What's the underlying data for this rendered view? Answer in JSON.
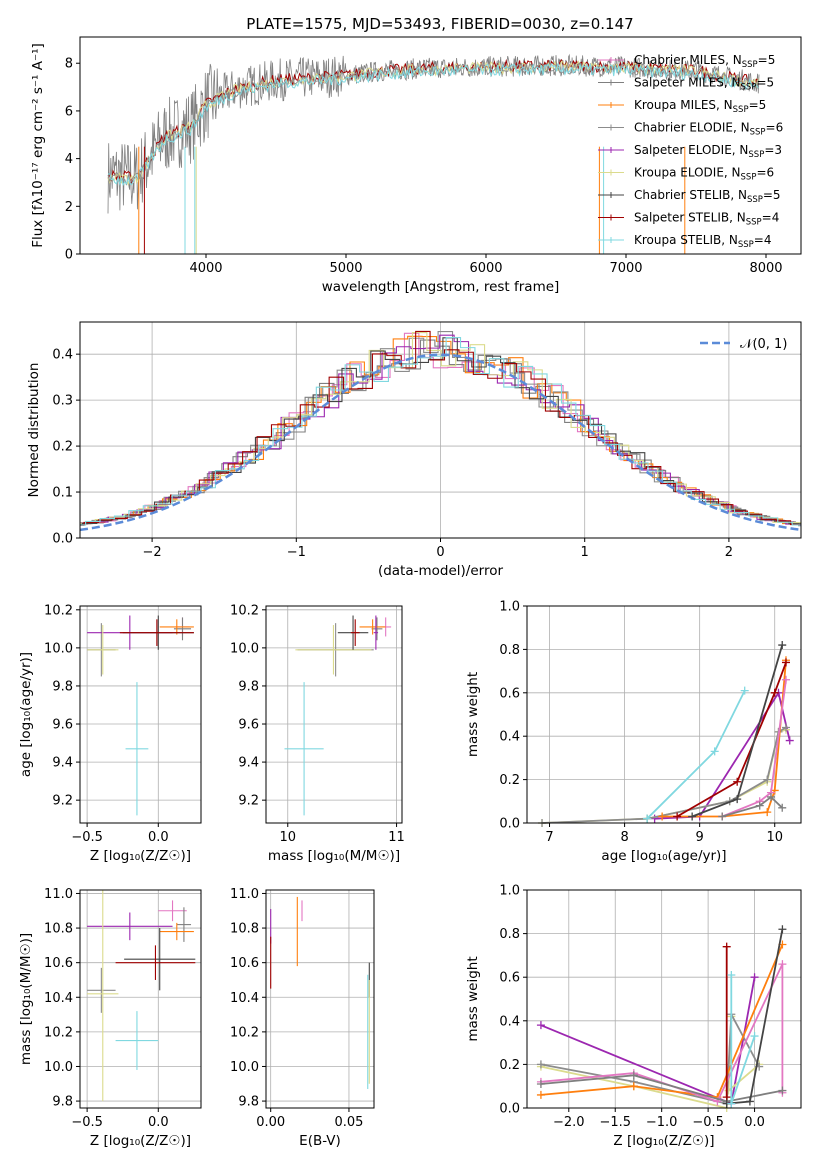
{
  "figure_title": "PLATE=1575, MJD=53493, FIBERID=0030, z=0.147",
  "colors": {
    "Chabrier MILES": "#e377c2",
    "Salpeter MILES": "#7f7f7f",
    "Kroupa MILES": "#ff7f0e",
    "Chabrier ELODIE": "#8c8c8c",
    "Salpeter ELODIE": "#9c27b0",
    "Kroupa ELODIE": "#dbdb8d",
    "Chabrier STELIB": "#444444",
    "Salpeter STELIB": "#a00000",
    "Kroupa STELIB": "#80d8e0",
    "normal": "#5b8bd8",
    "spectrum_gray": "#808080"
  },
  "chart_data": [
    {
      "id": "spectrum",
      "type": "line",
      "title": "PLATE=1575, MJD=53493, FIBERID=0030, z=0.147",
      "xlabel": "wavelength [Angstrom, rest frame]",
      "ylabel": "Flux [fλ10⁻¹⁷ erg cm⁻² s⁻¹ A⁻¹]",
      "xlim": [
        3100,
        8250
      ],
      "ylim": [
        0,
        9.1
      ],
      "xticks": [
        "4000",
        "5000",
        "6000",
        "7000",
        "8000"
      ],
      "yticks": [
        "0",
        "2",
        "4",
        "6",
        "8"
      ],
      "grid": false,
      "legend_position": "top-right",
      "legend": [
        {
          "label": "Chabrier MILES, N",
          "sub": "SSP",
          "suffix": "=5"
        },
        {
          "label": "Salpeter MILES, N",
          "sub": "SSP",
          "suffix": "=5"
        },
        {
          "label": "Kroupa MILES, N",
          "sub": "SSP",
          "suffix": "=5"
        },
        {
          "label": "Chabrier ELODIE, N",
          "sub": "SSP",
          "suffix": "=6"
        },
        {
          "label": "Salpeter ELODIE, N",
          "sub": "SSP",
          "suffix": "=3"
        },
        {
          "label": "Kroupa ELODIE, N",
          "sub": "SSP",
          "suffix": "=6"
        },
        {
          "label": "Chabrier STELIB, N",
          "sub": "SSP",
          "suffix": "=5"
        },
        {
          "label": "Salpeter STELIB, N",
          "sub": "SSP",
          "suffix": "=4"
        },
        {
          "label": "Kroupa STELIB, N",
          "sub": "SSP",
          "suffix": "=4"
        }
      ],
      "continuum": {
        "x": [
          3300,
          3500,
          3700,
          3900,
          4000,
          4200,
          4500,
          4800,
          5000,
          5300,
          5600,
          6000,
          6500,
          7000,
          7500,
          8000
        ],
        "y": [
          3.3,
          3.2,
          4.9,
          5.4,
          6.3,
          6.9,
          7.3,
          7.4,
          7.5,
          7.7,
          7.8,
          7.85,
          7.9,
          7.85,
          7.7,
          7.1
        ]
      }
    },
    {
      "id": "residuals",
      "type": "histogram",
      "xlabel": "(data-model)/error",
      "ylabel": "Normed distribution",
      "xlim": [
        -2.5,
        2.5
      ],
      "ylim": [
        0,
        0.47
      ],
      "xticks": [
        "−2",
        "−1",
        "0",
        "1",
        "2"
      ],
      "yticks": [
        "0.0",
        "0.1",
        "0.2",
        "0.3",
        "0.4"
      ],
      "grid": true,
      "legend_position": "top-right",
      "legend": [
        "𝒩(0, 1)"
      ],
      "bin_width": 0.1
    },
    {
      "id": "age_vs_z",
      "type": "errorbar",
      "xlabel": "Z [log₁₀(Z/Z☉)]",
      "ylabel": "age  [log₁₀(age/yr)]",
      "xlim": [
        -0.55,
        0.3
      ],
      "ylim": [
        9.08,
        10.22
      ],
      "xticks": [
        "−0.5",
        "0.0"
      ],
      "yticks": [
        "9.2",
        "9.4",
        "9.6",
        "9.8",
        "10.0",
        "10.2"
      ],
      "grid": true,
      "points": [
        {
          "model": "Chabrier MILES",
          "x": 0.17,
          "xerr": 0.05,
          "y": 10.11,
          "yerr": 0.05
        },
        {
          "model": "Salpeter MILES",
          "x": 0.17,
          "xerr": 0.06,
          "y": 10.1,
          "yerr": 0.06
        },
        {
          "model": "Kroupa MILES",
          "x": 0.13,
          "xerr": 0.12,
          "y": 10.11,
          "yerr": 0.04
        },
        {
          "model": "Chabrier ELODIE",
          "x": -0.4,
          "xerr": 0.1,
          "y": 9.99,
          "yerr": 0.14
        },
        {
          "model": "Salpeter ELODIE",
          "x": -0.2,
          "xerr": 0.3,
          "y": 10.08,
          "yerr": 0.09
        },
        {
          "model": "Kroupa ELODIE",
          "x": -0.39,
          "xerr": 0.11,
          "y": 9.99,
          "yerr": 0.13
        },
        {
          "model": "Chabrier STELIB",
          "x": 0.0,
          "xerr": 0.25,
          "y": 10.08,
          "yerr": 0.09
        },
        {
          "model": "Salpeter STELIB",
          "x": -0.01,
          "xerr": 0.26,
          "y": 10.08,
          "yerr": 0.07
        },
        {
          "model": "Kroupa STELIB",
          "x": -0.15,
          "xerr": 0.08,
          "y": 9.47,
          "yerr": 0.35
        }
      ]
    },
    {
      "id": "age_vs_mass",
      "type": "errorbar",
      "xlabel": "mass [log₁₀(M/M☉)]",
      "xlim": [
        9.8,
        11.05
      ],
      "ylim": [
        9.08,
        10.22
      ],
      "xticks": [
        "10",
        "11"
      ],
      "yticks": [
        "9.2",
        "9.4",
        "9.6",
        "9.8",
        "10.0",
        "10.2"
      ],
      "grid": true,
      "points": [
        {
          "model": "Chabrier MILES",
          "x": 10.9,
          "xerr": 0.05,
          "y": 10.11,
          "yerr": 0.05
        },
        {
          "model": "Salpeter MILES",
          "x": 10.82,
          "xerr": 0.05,
          "y": 10.1,
          "yerr": 0.06
        },
        {
          "model": "Kroupa MILES",
          "x": 10.78,
          "xerr": 0.12,
          "y": 10.11,
          "yerr": 0.04
        },
        {
          "model": "Chabrier ELODIE",
          "x": 10.44,
          "xerr": 0.35,
          "y": 9.99,
          "yerr": 0.14
        },
        {
          "model": "Salpeter ELODIE",
          "x": 10.81,
          "xerr": 0.02,
          "y": 10.08,
          "yerr": 0.09
        },
        {
          "model": "Kroupa ELODIE",
          "x": 10.42,
          "xerr": 0.35,
          "y": 9.99,
          "yerr": 0.13
        },
        {
          "model": "Chabrier STELIB",
          "x": 10.6,
          "xerr": 0.14,
          "y": 10.08,
          "yerr": 0.09
        },
        {
          "model": "Salpeter STELIB",
          "x": 10.62,
          "xerr": 0.04,
          "y": 10.08,
          "yerr": 0.07
        },
        {
          "model": "Kroupa STELIB",
          "x": 10.15,
          "xerr": 0.18,
          "y": 9.47,
          "yerr": 0.35
        }
      ]
    },
    {
      "id": "weight_vs_age",
      "type": "line",
      "xlabel": "age  [log₁₀(age/yr)]",
      "ylabel": "mass weight",
      "xlim": [
        6.7,
        10.35
      ],
      "ylim": [
        0,
        1.0
      ],
      "xticks": [
        "7",
        "8",
        "9",
        "10"
      ],
      "yticks": [
        "0.0",
        "0.2",
        "0.4",
        "0.6",
        "0.8",
        "1.0"
      ],
      "grid": true,
      "series": [
        {
          "model": "Salpeter ELODIE",
          "x": [
            8.4,
            9.0,
            10.05,
            10.2
          ],
          "y": [
            0.02,
            0.03,
            0.6,
            0.38
          ]
        },
        {
          "model": "Kroupa ELODIE",
          "x": [
            6.9,
            8.3,
            9.4,
            9.9,
            10.05,
            10.15
          ],
          "y": [
            0.0,
            0.02,
            0.1,
            0.19,
            0.42,
            0.43
          ]
        },
        {
          "model": "Chabrier ELODIE",
          "x": [
            6.9,
            8.3,
            9.4,
            9.9,
            10.05,
            10.15
          ],
          "y": [
            0.0,
            0.02,
            0.1,
            0.2,
            0.42,
            0.44
          ]
        },
        {
          "model": "Kroupa MILES",
          "x": [
            8.5,
            9.3,
            9.9,
            10.0,
            10.15
          ],
          "y": [
            0.03,
            0.03,
            0.05,
            0.15,
            0.75
          ]
        },
        {
          "model": "Chabrier MILES",
          "x": [
            9.3,
            9.8,
            9.95,
            10.15
          ],
          "y": [
            0.03,
            0.1,
            0.14,
            0.66
          ]
        },
        {
          "model": "Salpeter MILES",
          "x": [
            9.3,
            9.8,
            9.95,
            10.1
          ],
          "y": [
            0.03,
            0.08,
            0.12,
            0.07
          ]
        },
        {
          "model": "Salpeter STELIB",
          "x": [
            8.7,
            9.5,
            10.0,
            10.15
          ],
          "y": [
            0.03,
            0.19,
            0.6,
            0.74
          ]
        },
        {
          "model": "Chabrier STELIB",
          "x": [
            8.9,
            9.5,
            10.1
          ],
          "y": [
            0.03,
            0.11,
            0.82
          ]
        },
        {
          "model": "Kroupa STELIB",
          "x": [
            8.3,
            9.2,
            9.6
          ],
          "y": [
            0.02,
            0.33,
            0.61
          ]
        }
      ]
    },
    {
      "id": "mass_vs_z",
      "type": "errorbar",
      "xlabel": "Z [log₁₀(Z/Z☉)]",
      "ylabel": "mass [log₁₀(M/M☉)]",
      "xlim": [
        -0.55,
        0.3
      ],
      "ylim": [
        9.76,
        11.02
      ],
      "xticks": [
        "−0.5",
        "0.0"
      ],
      "yticks": [
        "9.8",
        "10.0",
        "10.2",
        "10.4",
        "10.6",
        "10.8",
        "11.0"
      ],
      "grid": true,
      "points": [
        {
          "model": "Chabrier MILES",
          "x": 0.1,
          "xerr": 0.1,
          "y": 10.9,
          "yerr": 0.06
        },
        {
          "model": "Salpeter MILES",
          "x": 0.18,
          "xerr": 0.05,
          "y": 10.82,
          "yerr": 0.1
        },
        {
          "model": "Kroupa MILES",
          "x": 0.13,
          "xerr": 0.12,
          "y": 10.78,
          "yerr": 0.05
        },
        {
          "model": "Chabrier ELODIE",
          "x": -0.4,
          "xerr": 0.1,
          "y": 10.44,
          "yerr": 0.13
        },
        {
          "model": "Salpeter ELODIE",
          "x": -0.2,
          "xerr": 0.3,
          "y": 10.81,
          "yerr": 0.08
        },
        {
          "model": "Kroupa ELODIE",
          "x": -0.39,
          "xerr": 0.11,
          "y": 10.42,
          "yerr": 0.62
        },
        {
          "model": "Chabrier STELIB",
          "x": 0.01,
          "xerr": 0.25,
          "y": 10.62,
          "yerr": 0.18
        },
        {
          "model": "Salpeter STELIB",
          "x": -0.02,
          "xerr": 0.28,
          "y": 10.6,
          "yerr": 0.1
        },
        {
          "model": "Kroupa STELIB",
          "x": -0.15,
          "xerr": 0.15,
          "y": 10.15,
          "yerr": 0.17
        }
      ]
    },
    {
      "id": "mass_vs_ebv",
      "type": "errorbar",
      "xlabel": "E(B-V)",
      "xlim": [
        -0.003,
        0.066
      ],
      "ylim": [
        9.76,
        11.02
      ],
      "xticks": [
        "0.00",
        "0.05"
      ],
      "yticks": [
        "9.8",
        "10.0",
        "10.2",
        "10.4",
        "10.6",
        "10.8",
        "11.0"
      ],
      "grid": true,
      "points": [
        {
          "model": "Chabrier MILES",
          "x": 0.02,
          "y": 10.9,
          "yerr": 0.06
        },
        {
          "model": "Kroupa MILES",
          "x": 0.017,
          "y": 10.78,
          "yerr": 0.2
        },
        {
          "model": "Salpeter ELODIE",
          "x": 0.0,
          "y": 10.81,
          "yerr": 0.1
        },
        {
          "model": "Salpeter STELIB",
          "x": 0.0,
          "y": 10.6,
          "yerr": 0.15
        },
        {
          "model": "Chabrier STELIB",
          "x": 0.063,
          "y": 10.5,
          "yerr": 0.1
        },
        {
          "model": "Kroupa ELODIE",
          "x": 0.063,
          "y": 10.2,
          "yerr": 0.3
        },
        {
          "model": "Kroupa STELIB",
          "x": 0.062,
          "y": 10.2,
          "yerr": 0.33
        }
      ]
    },
    {
      "id": "weight_vs_z",
      "type": "line",
      "xlabel": "Z [log₁₀(Z/Z☉)]",
      "ylabel": "mass weight",
      "xlim": [
        -2.45,
        0.5
      ],
      "ylim": [
        0,
        1.0
      ],
      "xticks": [
        "−2.0",
        "−1.5",
        "−1.0",
        "−0.5",
        "0.0"
      ],
      "yticks": [
        "0.0",
        "0.2",
        "0.4",
        "0.6",
        "0.8",
        "1.0"
      ],
      "grid": true,
      "series": [
        {
          "model": "Salpeter ELODIE",
          "x": [
            -2.3,
            -0.25,
            0.0
          ],
          "y": [
            0.38,
            0.02,
            0.6
          ]
        },
        {
          "model": "Kroupa ELODIE",
          "x": [
            -2.3,
            -1.3,
            -0.3,
            -0.25,
            -0.28,
            0.05
          ],
          "y": [
            0.19,
            0.1,
            0.0,
            0.42,
            0.08,
            0.2
          ]
        },
        {
          "model": "Chabrier ELODIE",
          "x": [
            -2.3,
            -1.3,
            -0.3,
            -0.25,
            0.05
          ],
          "y": [
            0.2,
            0.12,
            0.02,
            0.43,
            0.19
          ]
        },
        {
          "model": "Kroupa MILES",
          "x": [
            -2.3,
            -1.3,
            -0.4,
            0.3
          ],
          "y": [
            0.06,
            0.1,
            0.05,
            0.75
          ]
        },
        {
          "model": "Chabrier MILES",
          "x": [
            -2.3,
            -1.3,
            -0.4,
            0.3,
            0.3
          ],
          "y": [
            0.12,
            0.16,
            0.03,
            0.66,
            0.07
          ]
        },
        {
          "model": "Salpeter MILES",
          "x": [
            -2.3,
            -1.3,
            -0.3,
            0.3
          ],
          "y": [
            0.11,
            0.15,
            0.03,
            0.08
          ]
        },
        {
          "model": "Salpeter STELIB",
          "x": [
            -0.3,
            -0.3
          ],
          "y": [
            0.74,
            0.05
          ]
        },
        {
          "model": "Chabrier STELIB",
          "x": [
            -0.3,
            -0.05,
            0.3
          ],
          "y": [
            0.02,
            0.03,
            0.82
          ]
        },
        {
          "model": "Kroupa STELIB",
          "x": [
            -0.25,
            -0.25,
            0.0
          ],
          "y": [
            0.61,
            0.02,
            0.33
          ]
        }
      ]
    }
  ]
}
